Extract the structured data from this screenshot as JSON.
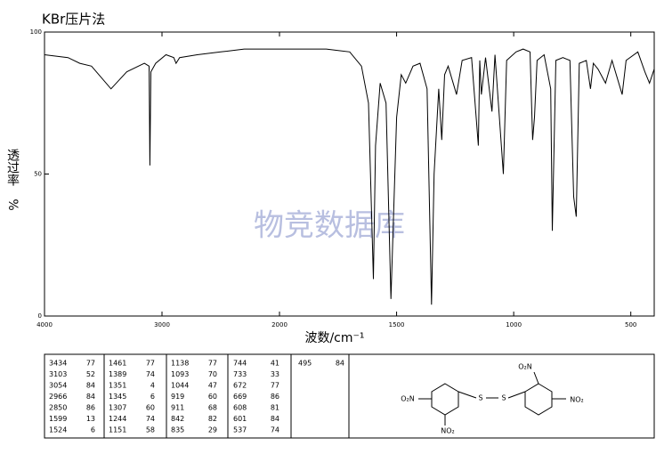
{
  "chart_data": {
    "type": "line",
    "title": "KBr压片法",
    "watermark": "物竞数据库",
    "xlabel": "波数/cm⁻¹",
    "ylabel": [
      "透过率",
      "%"
    ],
    "xlim": [
      4000,
      400
    ],
    "x_scale_break": 2000,
    "xticks": [
      4000,
      3000,
      2000,
      1500,
      1000,
      500
    ],
    "ylim": [
      0,
      100
    ],
    "yticks": [
      0,
      50,
      100
    ],
    "grid": false,
    "color": "#000000",
    "x": [
      4000,
      3800,
      3700,
      3600,
      3434,
      3300,
      3150,
      3110,
      3103,
      3095,
      3054,
      2966,
      2900,
      2880,
      2850,
      2700,
      2500,
      2300,
      2000,
      1800,
      1700,
      1650,
      1620,
      1599,
      1590,
      1570,
      1545,
      1524,
      1500,
      1480,
      1461,
      1430,
      1400,
      1370,
      1351,
      1340,
      1320,
      1307,
      1295,
      1280,
      1244,
      1220,
      1180,
      1151,
      1145,
      1138,
      1120,
      1093,
      1080,
      1044,
      1030,
      990,
      960,
      930,
      919,
      911,
      900,
      870,
      842,
      835,
      820,
      790,
      760,
      744,
      733,
      720,
      690,
      672,
      660,
      640,
      608,
      601,
      580,
      537,
      520,
      470,
      440,
      420,
      400
    ],
    "values": [
      92,
      91,
      89,
      88,
      80,
      86,
      89,
      88,
      53,
      86,
      89,
      92,
      91,
      89,
      91,
      92,
      93,
      94,
      94,
      94,
      93,
      88,
      75,
      13,
      60,
      82,
      75,
      6,
      70,
      85,
      82,
      88,
      89,
      80,
      4,
      50,
      80,
      62,
      85,
      88,
      78,
      90,
      91,
      60,
      90,
      78,
      91,
      72,
      92,
      50,
      90,
      93,
      94,
      93,
      62,
      70,
      90,
      92,
      80,
      30,
      90,
      91,
      90,
      42,
      35,
      89,
      90,
      80,
      89,
      87,
      82,
      84,
      90,
      78,
      90,
      93,
      86,
      82,
      87
    ],
    "peaks": [
      [
        3434,
        77
      ],
      [
        3103,
        52
      ],
      [
        3054,
        84
      ],
      [
        2966,
        84
      ],
      [
        2850,
        86
      ],
      [
        1599,
        13
      ],
      [
        1524,
        6
      ],
      [
        1461,
        77
      ],
      [
        1389,
        74
      ],
      [
        1351,
        4
      ],
      [
        1345,
        6
      ],
      [
        1307,
        60
      ],
      [
        1244,
        74
      ],
      [
        1151,
        58
      ],
      [
        1138,
        77
      ],
      [
        1093,
        70
      ],
      [
        1044,
        47
      ],
      [
        919,
        60
      ],
      [
        911,
        68
      ],
      [
        842,
        82
      ],
      [
        835,
        29
      ],
      [
        744,
        41
      ],
      [
        733,
        33
      ],
      [
        672,
        77
      ],
      [
        669,
        86
      ],
      [
        608,
        81
      ],
      [
        601,
        84
      ],
      [
        537,
        74
      ],
      [
        495,
        84
      ]
    ]
  },
  "structure": {
    "labels": [
      "O₂N",
      "O₂N",
      "NO₂",
      "NO₂",
      "S",
      "S"
    ]
  }
}
